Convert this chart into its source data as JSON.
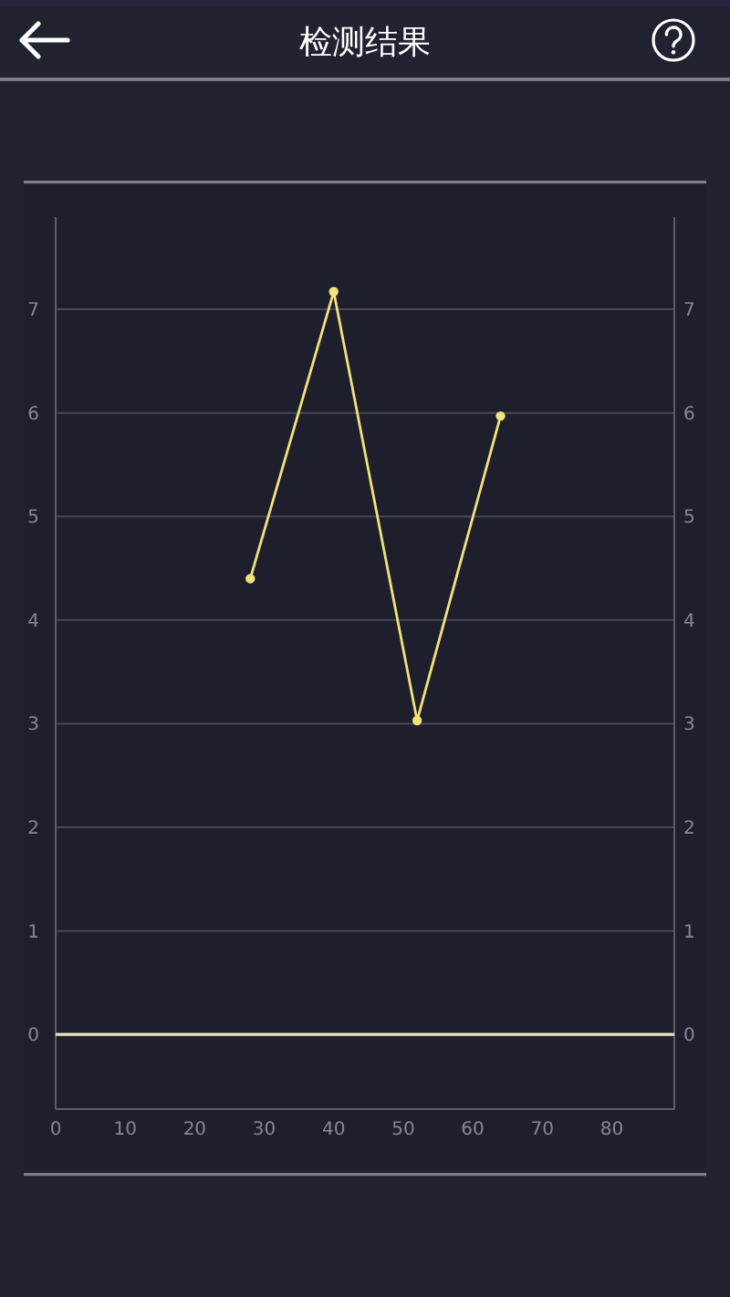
{
  "chart_data": {
    "type": "line",
    "title": "检测结果",
    "x": [
      28,
      40,
      52,
      64
    ],
    "series": [
      {
        "color": "#f3e27a",
        "values": [
          4.4,
          7.17,
          3.03,
          5.97
        ]
      }
    ],
    "xlim": [
      0,
      89
    ],
    "xticks": [
      0,
      10,
      20,
      30,
      40,
      50,
      60,
      70,
      80
    ],
    "ylim": [
      -0.72,
      7.89
    ],
    "yticks": [
      0,
      1,
      2,
      3,
      4,
      5,
      6,
      7
    ],
    "y2lim": [
      -0.72,
      7.89
    ],
    "y2ticks": [
      0,
      1,
      2,
      3,
      4,
      5,
      6,
      7
    ],
    "grid": "y",
    "marker": "circle",
    "line_style": "solid",
    "ref_lines": [
      {
        "axis": "y",
        "value": 0,
        "color": "#f1e4bb"
      }
    ]
  }
}
